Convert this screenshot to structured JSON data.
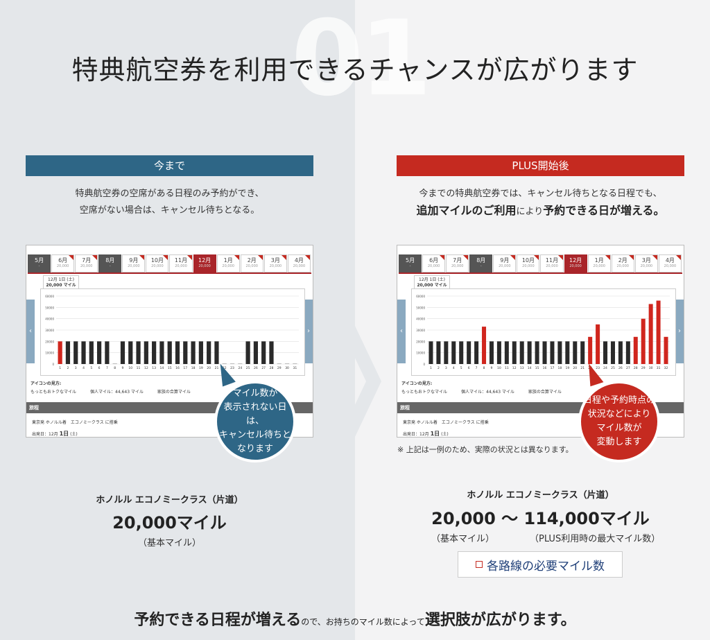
{
  "hero": {
    "number": "01",
    "title": "特典航空券を利用できるチャンスが広がります"
  },
  "left": {
    "header": "今まで",
    "desc_line1": "特典航空券の空席がある日程のみ予約ができ、",
    "desc_line2": "空席がない場合は、キャンセル待ちとなる。",
    "bubble_l1": "マイル数が",
    "bubble_l2": "表示されない日は、",
    "bubble_l3": "キャンセル待ちと",
    "bubble_l4": "なります",
    "route": "ホノルル エコノミークラス（片道）",
    "miles": "20,000マイル",
    "miles_sub": "（基本マイル）"
  },
  "right": {
    "header": "PLUS開始後",
    "desc_line1": "今までの特典航空券では、キャンセル待ちとなる日程でも、",
    "desc_strong1": "追加マイルのご利用",
    "desc_small": "により",
    "desc_strong2": "予約できる日が増える。",
    "bubble_l1": "日程や予約時点の",
    "bubble_l2": "状況などにより",
    "bubble_l3": "マイル数が",
    "bubble_l4": "変動します",
    "note": "※ 上記は一例のため、実際の状況とは異なります。",
    "route": "ホノルル エコノミークラス（片道）",
    "miles": "20,000 〜 114,000マイル",
    "miles_sub_base": "（基本マイル）",
    "miles_sub_max": "（PLUS利用時の最大マイル数）",
    "routes_button": "各路線の必要マイル数"
  },
  "screenshot": {
    "months": [
      "5月",
      "6月",
      "7月",
      "8月",
      "9月",
      "10月",
      "11月",
      "12月",
      "1月",
      "2月",
      "3月",
      "4月"
    ],
    "month_sub": "20,000",
    "date_tab_line1": "12月 1日 (土)",
    "date_tab_line2": "20,000 マイル",
    "legend_title": "アイコンの見方:",
    "legend_item1": "もっともおトクなマイル",
    "legend_item2": "個人マイル：44,643 マイル",
    "legend_item3": "家族の合算マイル",
    "itinerary_label": "旅程",
    "itinerary_route": "東京発 ホノルル着　エコノミークラス に搭乗",
    "depart_label": "出発日：12月",
    "depart_day": "1日",
    "depart_weekday": "(土)"
  },
  "bottom": {
    "strong1": "予約できる日程が増える",
    "small": "ので、お持ちのマイル数によって",
    "strong2": "選択肢が広がります。"
  },
  "colors": {
    "blue": "#2e6686",
    "red": "#c52a20"
  },
  "chart_data": [
    {
      "type": "bar",
      "ylim": [
        0,
        60000
      ],
      "values": [
        20000,
        20000,
        20000,
        20000,
        20000,
        20000,
        20000,
        0,
        20000,
        20000,
        20000,
        20000,
        20000,
        20000,
        20000,
        20000,
        20000,
        20000,
        20000,
        20000,
        20000,
        0,
        0,
        0,
        20000,
        20000,
        20000,
        20000,
        0,
        0,
        0
      ],
      "highlight": [
        0
      ]
    },
    {
      "type": "bar",
      "ylim": [
        0,
        60000
      ],
      "values": [
        20000,
        20000,
        20000,
        20000,
        20000,
        20000,
        20000,
        33000,
        20000,
        20000,
        20000,
        20000,
        20000,
        20000,
        20000,
        20000,
        20000,
        20000,
        20000,
        20000,
        20000,
        24000,
        35000,
        20000,
        20000,
        20000,
        20000,
        24000,
        40000,
        53000,
        56000,
        24000
      ],
      "highlight": [
        7,
        21,
        22,
        27,
        28,
        29,
        30,
        31
      ]
    }
  ]
}
